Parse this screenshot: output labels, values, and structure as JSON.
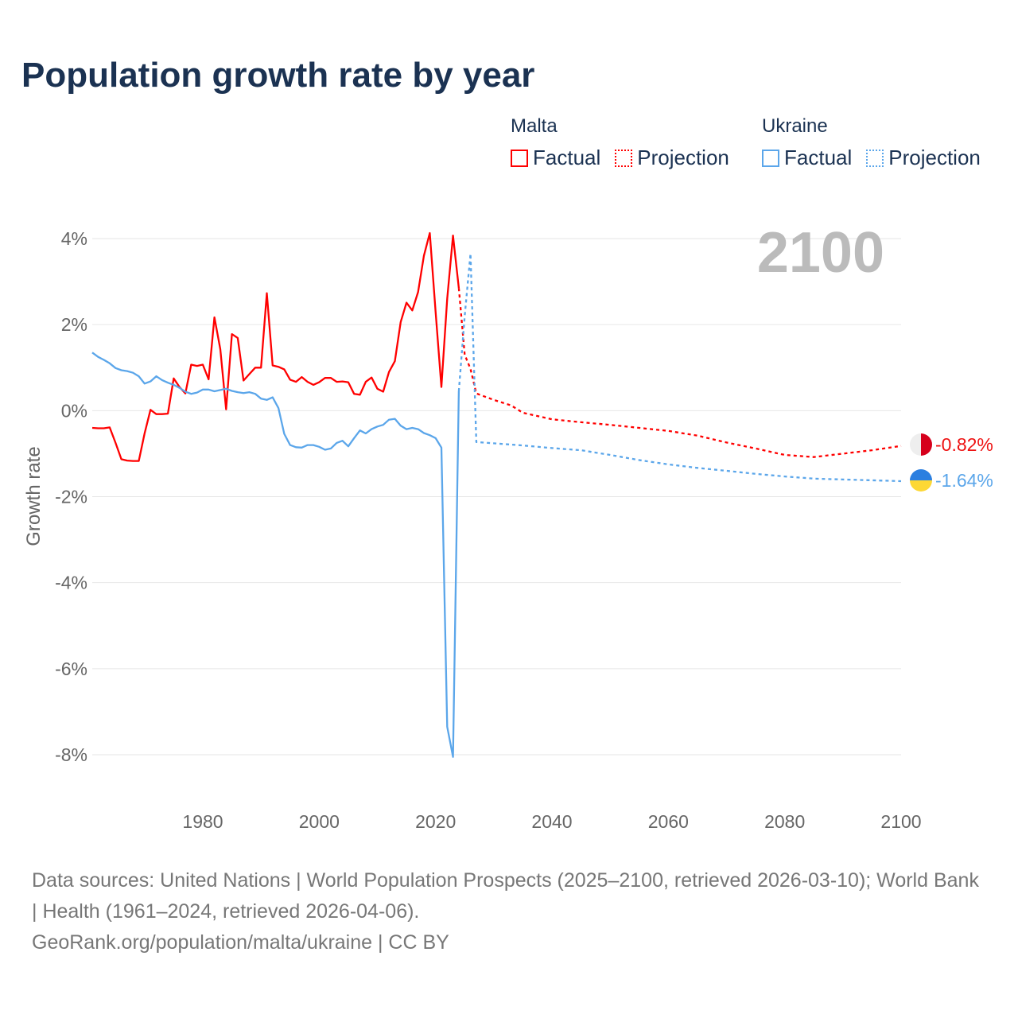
{
  "title": "Population growth rate by year",
  "legend": {
    "groups": [
      {
        "name": "Malta",
        "factual": "Factual",
        "projection": "Projection",
        "color": "#ff0000"
      },
      {
        "name": "Ukraine",
        "factual": "Factual",
        "projection": "Projection",
        "color": "#5ba6ea"
      }
    ]
  },
  "year_label": "2100",
  "end_labels": {
    "malta": "-0.82%",
    "ukraine": "-1.64%"
  },
  "footer": {
    "sources": "Data sources: United Nations | World Population Prospects (2025–2100, retrieved 2026-03-10); World Bank | Health (1961–2024, retrieved 2026-04-06).",
    "credit": "GeoRank.org/population/malta/ukraine | CC BY"
  },
  "chart_data": {
    "type": "line",
    "title": "Population growth rate by year",
    "xlabel": "",
    "ylabel": "Growth rate",
    "xlim": [
      1961,
      2100
    ],
    "ylim": [
      -8,
      4
    ],
    "xticks": [
      1980,
      2000,
      2020,
      2040,
      2060,
      2080,
      2100
    ],
    "yticks": [
      4,
      2,
      0,
      -2,
      -4,
      -6,
      -8
    ],
    "ytick_labels": [
      "4%",
      "2%",
      "0%",
      "-2%",
      "-4%",
      "-6%",
      "-8%"
    ],
    "grid": true,
    "series": [
      {
        "name": "Malta Factual",
        "color": "#ff0000",
        "dash": false,
        "start": 1961,
        "values": [
          -0.4,
          -0.41,
          -0.41,
          -0.39,
          -0.75,
          -1.13,
          -1.16,
          -1.17,
          -1.17,
          -0.53,
          0.02,
          -0.08,
          -0.08,
          -0.07,
          0.75,
          0.55,
          0.4,
          1.07,
          1.04,
          1.07,
          0.73,
          2.17,
          1.43,
          0.03,
          1.78,
          1.69,
          0.7,
          0.85,
          1.0,
          1.0,
          2.73,
          1.05,
          1.02,
          0.96,
          0.72,
          0.67,
          0.78,
          0.67,
          0.6,
          0.66,
          0.76,
          0.76,
          0.67,
          0.68,
          0.66,
          0.39,
          0.37,
          0.67,
          0.77,
          0.51,
          0.44,
          0.9,
          1.15,
          2.06,
          2.51,
          2.33,
          2.76,
          3.6,
          4.13,
          2.3,
          0.55,
          2.6,
          4.07,
          2.85
        ]
      },
      {
        "name": "Malta Projection",
        "color": "#ff0000",
        "dash": true,
        "x": [
          2024,
          2025,
          2026,
          2027,
          2030,
          2033,
          2035,
          2040,
          2045,
          2050,
          2055,
          2060,
          2065,
          2070,
          2075,
          2080,
          2085,
          2090,
          2095,
          2100
        ],
        "values": [
          2.85,
          1.3,
          0.97,
          0.4,
          0.25,
          0.12,
          -0.05,
          -0.2,
          -0.27,
          -0.33,
          -0.4,
          -0.47,
          -0.58,
          -0.74,
          -0.88,
          -1.03,
          -1.08,
          -1.0,
          -0.92,
          -0.82
        ]
      },
      {
        "name": "Ukraine Factual",
        "color": "#5ba6ea",
        "dash": false,
        "start": 1961,
        "values": [
          1.35,
          1.25,
          1.18,
          1.1,
          0.99,
          0.94,
          0.92,
          0.88,
          0.8,
          0.63,
          0.68,
          0.8,
          0.71,
          0.65,
          0.6,
          0.53,
          0.44,
          0.39,
          0.42,
          0.49,
          0.49,
          0.45,
          0.48,
          0.51,
          0.46,
          0.43,
          0.41,
          0.43,
          0.39,
          0.28,
          0.25,
          0.31,
          0.06,
          -0.54,
          -0.8,
          -0.85,
          -0.86,
          -0.8,
          -0.8,
          -0.84,
          -0.91,
          -0.88,
          -0.75,
          -0.7,
          -0.83,
          -0.64,
          -0.46,
          -0.53,
          -0.43,
          -0.37,
          -0.33,
          -0.21,
          -0.19,
          -0.35,
          -0.43,
          -0.4,
          -0.43,
          -0.52,
          -0.57,
          -0.64,
          -0.86,
          -7.35,
          -8.05,
          0.45
        ]
      },
      {
        "name": "Ukraine Projection",
        "color": "#5ba6ea",
        "dash": true,
        "x": [
          2024,
          2025,
          2026,
          2027,
          2030,
          2035,
          2040,
          2045,
          2050,
          2055,
          2060,
          2065,
          2070,
          2075,
          2080,
          2085,
          2090,
          2095,
          2100
        ],
        "values": [
          0.45,
          2.2,
          3.65,
          -0.73,
          -0.76,
          -0.81,
          -0.87,
          -0.92,
          -1.03,
          -1.15,
          -1.25,
          -1.33,
          -1.4,
          -1.47,
          -1.53,
          -1.58,
          -1.6,
          -1.62,
          -1.64
        ]
      }
    ]
  }
}
